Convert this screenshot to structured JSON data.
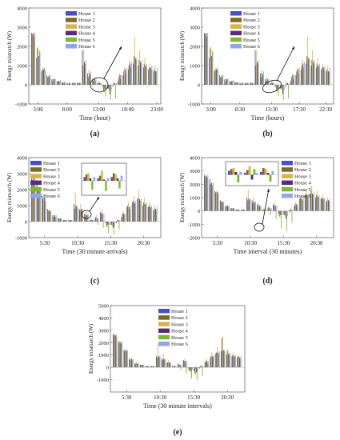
{
  "series_names": [
    "House 1",
    "House 2",
    "House 3",
    "House 4",
    "House 5",
    "House 6"
  ],
  "series_colors": [
    "#4b4fc4",
    "#7b6a23",
    "#d9b34a",
    "#5b2a7a",
    "#7fb82f",
    "#8fa6e8"
  ],
  "chart_data": [
    {
      "type": "bar",
      "panel": "(a)",
      "ylabel": "Energy mismatch (W)",
      "xlabel": "Time (hour)",
      "ylim": [
        -1000,
        4000
      ],
      "yticks": [
        -1000,
        0,
        1000,
        2000,
        3000,
        4000
      ],
      "xticks": [
        "3:00",
        "8:00",
        "13:00",
        "18:00",
        "23:00"
      ],
      "legend": "top-left",
      "series": [
        {
          "name": "House 1",
          "values": [
            2700,
            1400,
            700,
            500,
            300,
            200,
            150,
            100,
            100,
            100,
            1800,
            600,
            300,
            100,
            -100,
            -200,
            -100,
            200,
            500,
            800,
            1100,
            1000,
            900,
            800,
            700
          ]
        },
        {
          "name": "House 2",
          "values": [
            2650,
            1900,
            800,
            400,
            200,
            150,
            100,
            50,
            80,
            100,
            1000,
            400,
            200,
            100,
            -300,
            -200,
            100,
            400,
            700,
            1000,
            1500,
            1300,
            1100,
            900,
            800
          ]
        },
        {
          "name": "House 3",
          "values": [
            2600,
            2000,
            900,
            500,
            300,
            200,
            150,
            100,
            100,
            100,
            1800,
            800,
            400,
            200,
            -400,
            -300,
            100,
            600,
            900,
            1300,
            2500,
            1800,
            1400,
            1100,
            1000
          ]
        },
        {
          "name": "House 4",
          "values": [
            2700,
            1500,
            800,
            400,
            300,
            200,
            100,
            100,
            100,
            100,
            1200,
            600,
            300,
            100,
            -200,
            -500,
            100,
            500,
            800,
            1100,
            1400,
            1200,
            1000,
            900,
            700
          ]
        },
        {
          "name": "House 5",
          "values": [
            2500,
            1800,
            900,
            500,
            300,
            200,
            150,
            100,
            100,
            100,
            1100,
            500,
            200,
            100,
            -600,
            -800,
            -700,
            300,
            600,
            900,
            1300,
            1100,
            900,
            800,
            700
          ]
        },
        {
          "name": "House 6",
          "values": [
            2700,
            1700,
            800,
            500,
            300,
            250,
            150,
            100,
            100,
            100,
            1300,
            700,
            300,
            100,
            -200,
            -300,
            100,
            500,
            900,
            1200,
            1400,
            1300,
            1100,
            1000,
            900
          ]
        }
      ]
    },
    {
      "type": "bar",
      "panel": "(b)",
      "ylabel": "Energy mismatch (W)",
      "xlabel": "Time (hours)",
      "ylim": [
        -1000,
        4000
      ],
      "yticks": [
        -1000,
        0,
        1000,
        2000,
        3000,
        4000
      ],
      "xticks": [
        "3:00",
        "8:30",
        "13:30",
        "17:30",
        "22:30"
      ],
      "legend": "top-left",
      "series": [
        {
          "name": "House 1",
          "values": [
            2700,
            1400,
            700,
            500,
            300,
            200,
            150,
            100,
            100,
            100,
            1800,
            600,
            300,
            100,
            -100,
            -200,
            -100,
            200,
            500,
            800,
            1100,
            1000,
            900,
            800,
            700
          ]
        },
        {
          "name": "House 2",
          "values": [
            2650,
            1900,
            800,
            400,
            200,
            150,
            100,
            50,
            80,
            100,
            1000,
            400,
            200,
            100,
            -300,
            -200,
            100,
            400,
            700,
            1000,
            1500,
            1300,
            1100,
            900,
            800
          ]
        },
        {
          "name": "House 3",
          "values": [
            2600,
            2000,
            900,
            500,
            300,
            200,
            150,
            100,
            100,
            100,
            1800,
            800,
            400,
            200,
            -400,
            -300,
            100,
            600,
            900,
            1300,
            2500,
            1800,
            1400,
            1100,
            1000
          ]
        },
        {
          "name": "House 4",
          "values": [
            2700,
            1500,
            800,
            400,
            300,
            200,
            100,
            100,
            100,
            100,
            1200,
            600,
            300,
            100,
            -200,
            -500,
            100,
            500,
            800,
            1100,
            1400,
            1200,
            1000,
            900,
            700
          ]
        },
        {
          "name": "House 5",
          "values": [
            2500,
            1800,
            900,
            500,
            300,
            200,
            150,
            100,
            100,
            100,
            1100,
            500,
            200,
            100,
            -600,
            -800,
            -700,
            300,
            600,
            900,
            1300,
            1100,
            900,
            800,
            700
          ]
        },
        {
          "name": "House 6",
          "values": [
            2700,
            1700,
            800,
            500,
            300,
            250,
            150,
            100,
            100,
            100,
            1300,
            700,
            300,
            100,
            -200,
            -300,
            100,
            500,
            900,
            1200,
            1400,
            1300,
            1100,
            1000,
            900
          ]
        }
      ]
    },
    {
      "type": "bar",
      "panel": "(c)",
      "ylabel": "Energy mismatch (W)",
      "xlabel": "Time (30 minute arrivals)",
      "ylim": [
        -1000,
        4000
      ],
      "yticks": [
        -1000,
        0,
        1000,
        2000,
        3000,
        4000
      ],
      "xticks": [
        "5:30",
        "10:30",
        "15:30",
        "20:30"
      ],
      "legend": "top-left",
      "series": [
        {
          "name": "House 1",
          "values": [
            2700,
            2400,
            1600,
            800,
            400,
            200,
            100,
            100,
            1100,
            800,
            500,
            100,
            200,
            600,
            -100,
            -200,
            -100,
            300,
            900,
            1200,
            1400,
            1000,
            900,
            700
          ]
        },
        {
          "name": "House 2",
          "values": [
            2600,
            2000,
            1400,
            700,
            300,
            200,
            100,
            100,
            800,
            700,
            400,
            100,
            300,
            500,
            -300,
            -200,
            100,
            500,
            1000,
            1300,
            1500,
            1200,
            1000,
            800
          ]
        },
        {
          "name": "House 3",
          "values": [
            2800,
            2200,
            1500,
            700,
            400,
            200,
            100,
            100,
            1800,
            1100,
            600,
            200,
            400,
            800,
            -400,
            -300,
            200,
            700,
            1200,
            1600,
            2000,
            1500,
            1200,
            1000
          ]
        },
        {
          "name": "House 4",
          "values": [
            2700,
            2100,
            1500,
            700,
            400,
            200,
            100,
            100,
            1000,
            800,
            400,
            100,
            200,
            500,
            -200,
            -400,
            100,
            500,
            900,
            1200,
            1400,
            1100,
            900,
            800
          ]
        },
        {
          "name": "House 5",
          "values": [
            2500,
            1900,
            1300,
            600,
            300,
            200,
            100,
            100,
            900,
            700,
            400,
            100,
            -200,
            -400,
            -700,
            -800,
            -500,
            400,
            800,
            1100,
            1300,
            1100,
            900,
            700
          ]
        },
        {
          "name": "House 6",
          "values": [
            2700,
            2100,
            1500,
            700,
            400,
            200,
            100,
            100,
            1000,
            800,
            500,
            100,
            200,
            500,
            -200,
            -300,
            100,
            500,
            1000,
            1300,
            1400,
            1200,
            1000,
            900
          ]
        }
      ]
    },
    {
      "type": "bar",
      "panel": "(d)",
      "ylabel": "Energy mismatch (W)",
      "xlabel": "Time interval (30 minutes)",
      "ylim": [
        -2000,
        4000
      ],
      "yticks": [
        -2000,
        -1000,
        0,
        1000,
        2000,
        3000,
        4000
      ],
      "xticks": [
        "5:30",
        "10:30",
        "15:30",
        "20:30"
      ],
      "legend": "top-right",
      "series": [
        {
          "name": "House 1",
          "values": [
            2700,
            2400,
            1500,
            800,
            400,
            200,
            100,
            100,
            1000,
            800,
            500,
            100,
            200,
            500,
            -200,
            -300,
            -100,
            400,
            900,
            1200,
            1300,
            1000,
            900,
            700
          ]
        },
        {
          "name": "House 2",
          "values": [
            2600,
            2000,
            1400,
            700,
            300,
            200,
            100,
            100,
            800,
            600,
            400,
            100,
            300,
            400,
            -400,
            -300,
            100,
            500,
            1000,
            1300,
            1500,
            1200,
            1000,
            800
          ]
        },
        {
          "name": "House 3",
          "values": [
            2700,
            2200,
            1500,
            700,
            400,
            200,
            100,
            100,
            1600,
            1000,
            600,
            200,
            300,
            700,
            -500,
            -400,
            200,
            700,
            1200,
            1500,
            1900,
            1500,
            1200,
            1000
          ]
        },
        {
          "name": "House 4",
          "values": [
            2600,
            2100,
            1400,
            700,
            400,
            200,
            100,
            100,
            900,
            700,
            400,
            100,
            200,
            400,
            -300,
            -600,
            100,
            500,
            900,
            1200,
            1300,
            1100,
            900,
            800
          ]
        },
        {
          "name": "House 5",
          "values": [
            2500,
            1900,
            1300,
            600,
            300,
            200,
            100,
            100,
            800,
            600,
            300,
            100,
            -300,
            -600,
            -1300,
            -1500,
            -900,
            300,
            800,
            1100,
            1200,
            1000,
            900,
            700
          ]
        },
        {
          "name": "House 6",
          "values": [
            2700,
            2100,
            1400,
            700,
            400,
            200,
            100,
            100,
            1000,
            700,
            400,
            100,
            200,
            400,
            -300,
            -400,
            100,
            500,
            1000,
            1300,
            1400,
            1200,
            1000,
            900
          ]
        }
      ]
    },
    {
      "type": "bar",
      "panel": "(e)",
      "ylabel": "Energy mismatch (W)",
      "xlabel": "Time (30 minute intervals)",
      "ylim": [
        -2000,
        5000
      ],
      "yticks": [
        -1000,
        0,
        1000,
        2000,
        3000,
        4000,
        5000
      ],
      "xticks": [
        "5:30",
        "10:30",
        "15:30",
        "20:30"
      ],
      "legend": "top-right",
      "series": [
        {
          "name": "House 1",
          "values": [
            2700,
            2100,
            1400,
            700,
            300,
            200,
            100,
            100,
            900,
            700,
            400,
            100,
            300,
            600,
            -200,
            -300,
            -100,
            400,
            800,
            1100,
            1300,
            1000,
            900,
            800
          ]
        },
        {
          "name": "House 2",
          "values": [
            2600,
            2000,
            1300,
            600,
            300,
            200,
            100,
            100,
            800,
            600,
            400,
            100,
            200,
            500,
            -300,
            -500,
            100,
            500,
            900,
            1200,
            2400,
            1300,
            1000,
            900
          ]
        },
        {
          "name": "House 3",
          "values": [
            2700,
            2200,
            1500,
            700,
            400,
            200,
            100,
            100,
            1800,
            1100,
            600,
            200,
            300,
            700,
            -400,
            -600,
            200,
            700,
            1200,
            1600,
            2500,
            1500,
            1200,
            1000
          ]
        },
        {
          "name": "House 4",
          "values": [
            2600,
            2000,
            1400,
            700,
            300,
            200,
            100,
            100,
            900,
            700,
            400,
            100,
            200,
            500,
            -300,
            -400,
            100,
            500,
            900,
            1200,
            1400,
            1100,
            900,
            800
          ]
        },
        {
          "name": "House 5",
          "values": [
            2500,
            1900,
            1300,
            600,
            300,
            200,
            100,
            100,
            800,
            600,
            300,
            100,
            -200,
            -500,
            -900,
            -1000,
            -700,
            300,
            800,
            1100,
            1300,
            1000,
            900,
            700
          ]
        },
        {
          "name": "House 6",
          "values": [
            2700,
            2100,
            1400,
            700,
            400,
            200,
            100,
            100,
            1000,
            700,
            400,
            100,
            200,
            500,
            -200,
            -300,
            100,
            500,
            1000,
            1300,
            1400,
            1200,
            1000,
            900
          ]
        }
      ]
    }
  ],
  "panel_labels": [
    "(a)",
    "(b)",
    "(c)",
    "(d)",
    "(e)"
  ]
}
